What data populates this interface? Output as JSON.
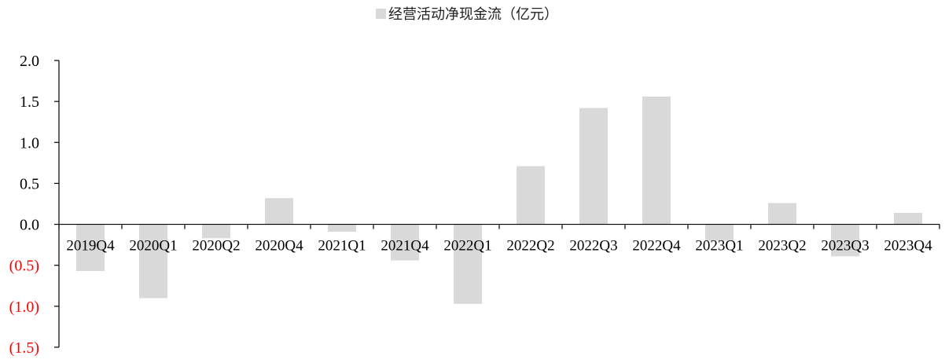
{
  "chart_data": {
    "type": "bar",
    "legend": {
      "label": "经营活动净现金流（亿元）",
      "position": "top-center"
    },
    "categories": [
      "2019Q4",
      "2020Q1",
      "2020Q2",
      "2020Q4",
      "2021Q1",
      "2021Q4",
      "2022Q1",
      "2022Q2",
      "2022Q3",
      "2022Q4",
      "2023Q1",
      "2023Q2",
      "2023Q3",
      "2023Q4"
    ],
    "series": [
      {
        "name": "经营活动净现金流（亿元）",
        "values": [
          -0.57,
          -0.9,
          -0.17,
          0.32,
          -0.09,
          -0.44,
          -0.97,
          0.71,
          1.42,
          1.56,
          -0.2,
          0.26,
          -0.39,
          0.14
        ]
      }
    ],
    "yticks": [
      {
        "value": 2.0,
        "label": "2.0"
      },
      {
        "value": 1.5,
        "label": "1.5"
      },
      {
        "value": 1.0,
        "label": "1.0"
      },
      {
        "value": 0.5,
        "label": "0.5"
      },
      {
        "value": 0.0,
        "label": "0.0"
      },
      {
        "value": -0.5,
        "label": "(0.5)"
      },
      {
        "value": -1.0,
        "label": "(1.0)"
      },
      {
        "value": -1.5,
        "label": "(1.5)"
      }
    ],
    "ylim": [
      -1.5,
      2.0
    ],
    "grid": false,
    "colors": {
      "bar": "#d9d9d9",
      "axis": "#000000",
      "positive_tick": "#000000",
      "negative_tick": "#ff0000"
    }
  }
}
